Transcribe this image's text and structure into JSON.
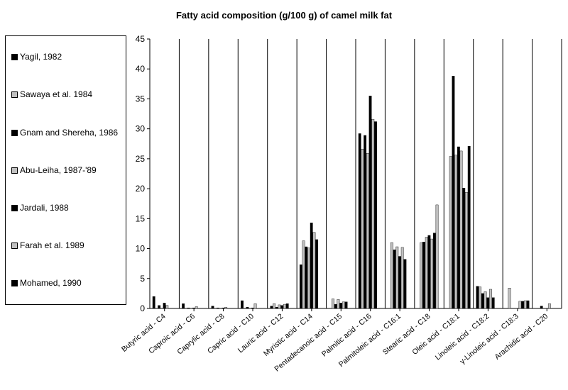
{
  "chart_data": {
    "type": "bar",
    "title": "Fatty acid composition (g/100 g) of camel milk fat",
    "xlabel": "",
    "ylabel": "",
    "ylim": [
      0,
      45
    ],
    "yticks": [
      0,
      5,
      10,
      15,
      20,
      25,
      30,
      35,
      40,
      45
    ],
    "grid": false,
    "legend_position": "left",
    "categories": [
      "Butyric acid - C4",
      "Caproic acid - C6",
      "Caprylic acid - C8",
      "Capric acid - C10",
      "Lauric acid - C12",
      "Myristic acid - C14",
      "Pentadecanoic acid - C15",
      "Palmitic acid - C16",
      "Palmitoleic acid - C16:1",
      "Stearic acid - C18",
      "Oleic acid - C18:1",
      "Linoleic acid - C18:2",
      "γ-Linoleic acid - C18:3",
      "Arachidic acid - C20"
    ],
    "series": [
      {
        "name": "Yagil, 1982",
        "color": "#000000",
        "values": [
          2.0,
          0.8,
          0.4,
          1.3,
          0.4,
          7.3,
          null,
          29.2,
          null,
          null,
          null,
          3.7,
          null,
          null
        ]
      },
      {
        "name": "Sawaya et al. 1984",
        "color": "#c0c0c0",
        "values": [
          null,
          null,
          null,
          null,
          0.8,
          11.3,
          1.6,
          26.6,
          11.0,
          11.0,
          25.4,
          3.6,
          3.4,
          null
        ]
      },
      {
        "name": "Gnam and Shereha, 1986",
        "color": "#000000",
        "values": [
          0.5,
          0.1,
          0.1,
          0.2,
          0.2,
          10.3,
          0.7,
          28.9,
          9.8,
          11.1,
          38.8,
          2.5,
          null,
          0.4
        ]
      },
      {
        "name": "Abu-Leiha, 1987-'89",
        "color": "#c0c0c0",
        "values": [
          null,
          null,
          null,
          null,
          0.6,
          10.1,
          1.5,
          25.9,
          10.3,
          11.9,
          25.6,
          2.8,
          null,
          null
        ]
      },
      {
        "name": "Jardali, 1988",
        "color": "#000000",
        "values": [
          0.9,
          0.1,
          0.1,
          0.1,
          0.5,
          14.3,
          0.9,
          35.5,
          8.7,
          12.2,
          27.0,
          1.8,
          null,
          null
        ]
      },
      {
        "name": "Farah et al. 1989",
        "color": "#c0c0c0",
        "values": [
          0.5,
          0.3,
          0.2,
          0.8,
          0.7,
          12.7,
          1.1,
          31.6,
          10.2,
          11.6,
          26.3,
          3.2,
          1.2,
          0.8
        ]
      },
      {
        "name": "Mohamed, 1990",
        "color": "#000000",
        "values": [
          null,
          null,
          null,
          null,
          0.8,
          11.5,
          1.1,
          31.2,
          8.2,
          12.6,
          20.1,
          1.8,
          1.2,
          null
        ]
      },
      {
        "name": "",
        "color": "#c0c0c0",
        "values": [
          null,
          null,
          null,
          null,
          null,
          null,
          null,
          null,
          null,
          17.3,
          19.4,
          null,
          1.3,
          null
        ]
      },
      {
        "name": "",
        "color": "#000000",
        "values": [
          null,
          null,
          null,
          null,
          null,
          null,
          null,
          null,
          null,
          null,
          27.1,
          null,
          1.3,
          null
        ]
      }
    ]
  }
}
